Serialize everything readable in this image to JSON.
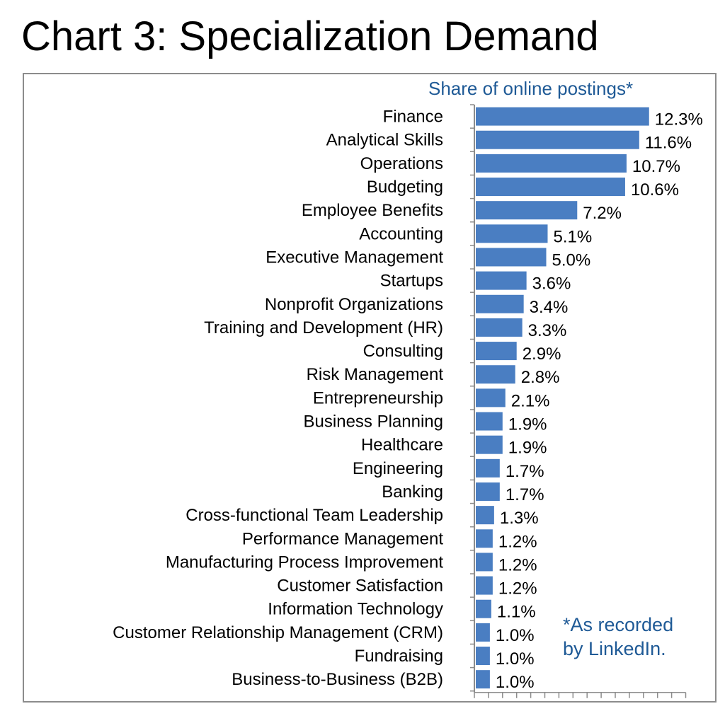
{
  "title": "Chart 3: Specialization Demand",
  "chart_data": {
    "type": "bar",
    "orientation": "horizontal",
    "subtitle": "Share of online postings*",
    "footnote": [
      "*As recorded",
      "by LinkedIn."
    ],
    "bar_color": "#4a7ec2",
    "categories": [
      "Finance",
      "Analytical Skills",
      "Operations",
      "Budgeting",
      "Employee Benefits",
      "Accounting",
      "Executive Management",
      "Startups",
      "Nonprofit Organizations",
      "Training and Development (HR)",
      "Consulting",
      "Risk Management",
      "Entrepreneurship",
      "Business Planning",
      "Healthcare",
      "Engineering",
      "Banking",
      "Cross-functional Team Leadership",
      "Performance Management",
      "Manufacturing Process Improvement",
      "Customer Satisfaction",
      "Information Technology",
      "Customer Relationship Management (CRM)",
      "Fundraising",
      "Business-to-Business (B2B)"
    ],
    "values": [
      12.3,
      11.6,
      10.7,
      10.6,
      7.2,
      5.1,
      5.0,
      3.6,
      3.4,
      3.3,
      2.9,
      2.8,
      2.1,
      1.9,
      1.9,
      1.7,
      1.7,
      1.3,
      1.2,
      1.2,
      1.2,
      1.1,
      1.0,
      1.0,
      1.0
    ],
    "value_labels": [
      "12.3%",
      "11.6%",
      "10.7%",
      "10.6%",
      "7.2%",
      "5.1%",
      "5.0%",
      "3.6%",
      "3.4%",
      "3.3%",
      "2.9%",
      "2.8%",
      "2.1%",
      "1.9%",
      "1.9%",
      "1.7%",
      "1.7%",
      "1.3%",
      "1.2%",
      "1.2%",
      "1.2%",
      "1.1%",
      "1.0%",
      "1.0%",
      "1.0%"
    ],
    "xlim": [
      0,
      15
    ],
    "x_tick_step": 1,
    "grid": false,
    "legend": false
  }
}
